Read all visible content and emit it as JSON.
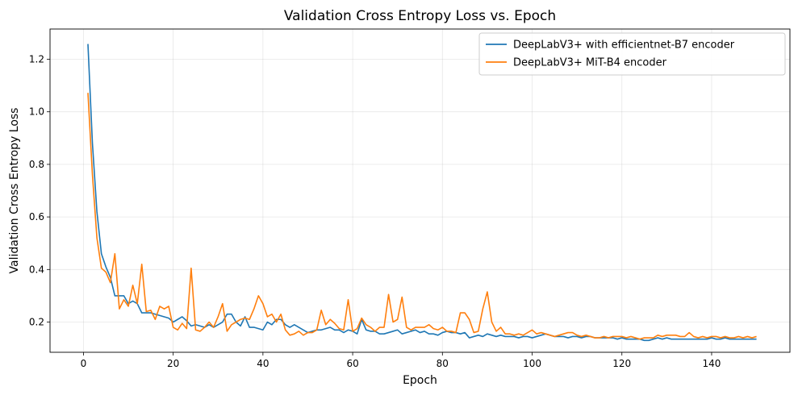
{
  "chart_data": {
    "type": "line",
    "title": "Validation Cross Entropy Loss vs. Epoch",
    "xlabel": "Epoch",
    "ylabel": "Validation Cross Entropy Loss",
    "xlim": [
      -7.45,
      157.45
    ],
    "ylim": [
      0.085,
      1.315
    ],
    "xticks": [
      0,
      20,
      40,
      60,
      80,
      100,
      120,
      140
    ],
    "yticks": [
      0.2,
      0.4,
      0.6,
      0.8,
      1.0,
      1.2
    ],
    "ytick_labels": [
      "0.2",
      "0.4",
      "0.6",
      "0.8",
      "1.0",
      "1.2"
    ],
    "grid": true,
    "legend_position": "top-right",
    "x_start": 1,
    "series": [
      {
        "name": "DeepLabV3+ with efficientnet-B7 encoder",
        "color": "#1f77b4",
        "values": [
          1.258,
          0.88,
          0.62,
          0.46,
          0.41,
          0.37,
          0.3,
          0.3,
          0.3,
          0.27,
          0.28,
          0.27,
          0.235,
          0.235,
          0.235,
          0.23,
          0.225,
          0.22,
          0.215,
          0.2,
          0.21,
          0.22,
          0.205,
          0.185,
          0.19,
          0.185,
          0.18,
          0.19,
          0.18,
          0.19,
          0.2,
          0.23,
          0.23,
          0.2,
          0.185,
          0.22,
          0.18,
          0.18,
          0.175,
          0.17,
          0.2,
          0.19,
          0.21,
          0.21,
          0.19,
          0.18,
          0.19,
          0.18,
          0.17,
          0.16,
          0.165,
          0.17,
          0.17,
          0.175,
          0.18,
          0.17,
          0.17,
          0.16,
          0.17,
          0.165,
          0.155,
          0.21,
          0.17,
          0.165,
          0.165,
          0.155,
          0.155,
          0.16,
          0.165,
          0.17,
          0.155,
          0.16,
          0.165,
          0.17,
          0.16,
          0.165,
          0.155,
          0.155,
          0.15,
          0.16,
          0.165,
          0.16,
          0.16,
          0.155,
          0.16,
          0.14,
          0.145,
          0.15,
          0.145,
          0.155,
          0.15,
          0.145,
          0.15,
          0.145,
          0.145,
          0.145,
          0.14,
          0.145,
          0.145,
          0.14,
          0.145,
          0.15,
          0.155,
          0.15,
          0.145,
          0.145,
          0.145,
          0.14,
          0.145,
          0.145,
          0.14,
          0.145,
          0.145,
          0.14,
          0.14,
          0.14,
          0.14,
          0.14,
          0.135,
          0.14,
          0.135,
          0.135,
          0.135,
          0.135,
          0.13,
          0.13,
          0.135,
          0.14,
          0.135,
          0.14,
          0.135,
          0.135,
          0.135,
          0.135,
          0.135,
          0.135,
          0.135,
          0.135,
          0.135,
          0.14,
          0.135,
          0.135,
          0.14,
          0.135,
          0.135,
          0.135,
          0.135,
          0.135,
          0.135,
          0.135
        ]
      },
      {
        "name": "DeepLabV3+ MiT-B4 encoder",
        "color": "#ff7f0e",
        "values": [
          1.072,
          0.76,
          0.52,
          0.405,
          0.39,
          0.35,
          0.46,
          0.25,
          0.285,
          0.26,
          0.34,
          0.27,
          0.42,
          0.24,
          0.245,
          0.21,
          0.26,
          0.25,
          0.26,
          0.18,
          0.17,
          0.195,
          0.175,
          0.405,
          0.17,
          0.165,
          0.18,
          0.2,
          0.18,
          0.22,
          0.27,
          0.165,
          0.19,
          0.2,
          0.21,
          0.215,
          0.21,
          0.25,
          0.3,
          0.27,
          0.22,
          0.23,
          0.2,
          0.23,
          0.17,
          0.15,
          0.155,
          0.165,
          0.15,
          0.16,
          0.16,
          0.17,
          0.245,
          0.19,
          0.21,
          0.195,
          0.175,
          0.17,
          0.285,
          0.165,
          0.175,
          0.215,
          0.19,
          0.18,
          0.165,
          0.18,
          0.18,
          0.305,
          0.2,
          0.21,
          0.295,
          0.18,
          0.17,
          0.18,
          0.18,
          0.18,
          0.19,
          0.175,
          0.17,
          0.18,
          0.165,
          0.165,
          0.16,
          0.235,
          0.235,
          0.21,
          0.16,
          0.165,
          0.25,
          0.315,
          0.2,
          0.165,
          0.18,
          0.155,
          0.155,
          0.15,
          0.155,
          0.15,
          0.16,
          0.17,
          0.155,
          0.16,
          0.155,
          0.15,
          0.145,
          0.15,
          0.155,
          0.16,
          0.16,
          0.15,
          0.145,
          0.15,
          0.145,
          0.14,
          0.14,
          0.145,
          0.14,
          0.145,
          0.145,
          0.145,
          0.14,
          0.145,
          0.14,
          0.135,
          0.14,
          0.14,
          0.14,
          0.15,
          0.145,
          0.15,
          0.15,
          0.15,
          0.145,
          0.145,
          0.16,
          0.145,
          0.14,
          0.145,
          0.14,
          0.145,
          0.145,
          0.14,
          0.145,
          0.14,
          0.14,
          0.145,
          0.14,
          0.145,
          0.14,
          0.145
        ]
      }
    ]
  }
}
